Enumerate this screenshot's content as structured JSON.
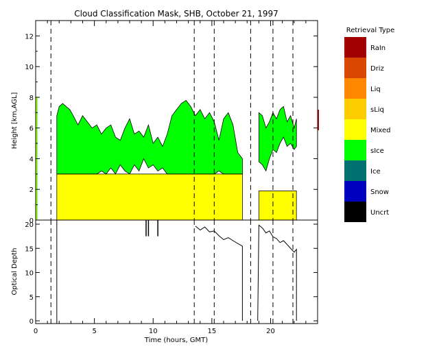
{
  "chart_data": [
    {
      "type": "area",
      "title": "Cloud Classification Mask, SHB, October 21, 1997",
      "ylabel": "Height [km,AGL]",
      "xlim": [
        0,
        24
      ],
      "ylim": [
        0,
        13
      ],
      "yticks": [
        0,
        2,
        4,
        6,
        8,
        10,
        12
      ],
      "grid": false,
      "dashed_times": [
        1.3,
        13.5,
        15.2,
        18.3,
        20.2,
        21.9
      ],
      "regions": [
        {
          "name": "Mixed",
          "color": "#ffff00",
          "x": [
            1.8,
            17.6
          ],
          "y": [
            0,
            3.0
          ]
        },
        {
          "name": "Mixed",
          "color": "#ffff00",
          "x": [
            19.0,
            22.2
          ],
          "y": [
            0,
            1.9
          ]
        }
      ],
      "sice_left": {
        "color": "#00ff00",
        "x": [
          1.8,
          2.0,
          2.3,
          2.6,
          2.9,
          3.2,
          3.6,
          4.0,
          4.4,
          4.8,
          5.2,
          5.6,
          6.0,
          6.4,
          6.8,
          7.2,
          7.6,
          8.0,
          8.4,
          8.8,
          9.2,
          9.6,
          10.0,
          10.4,
          10.8,
          11.2,
          11.6,
          12.0,
          12.4,
          12.8,
          13.2,
          13.6,
          14.0,
          14.4,
          14.8,
          15.2,
          15.6,
          16.0,
          16.4,
          16.8,
          17.2,
          17.6
        ],
        "top": [
          6.8,
          7.4,
          7.6,
          7.4,
          7.2,
          6.8,
          6.2,
          6.8,
          6.4,
          6.0,
          6.2,
          5.6,
          6.0,
          6.2,
          5.4,
          5.2,
          6.0,
          6.6,
          5.6,
          5.8,
          5.4,
          6.2,
          5.0,
          5.4,
          4.8,
          5.6,
          6.8,
          7.2,
          7.6,
          7.8,
          7.4,
          6.8,
          7.2,
          6.6,
          7.0,
          6.4,
          5.2,
          6.6,
          7.0,
          6.2,
          4.4,
          4.0
        ],
        "bottom": [
          3.0,
          3.0,
          3.0,
          3.0,
          3.0,
          3.0,
          3.0,
          3.0,
          3.0,
          3.0,
          3.0,
          3.2,
          3.0,
          3.4,
          3.0,
          3.6,
          3.2,
          3.0,
          3.6,
          3.2,
          4.0,
          3.4,
          3.6,
          3.2,
          3.4,
          3.0,
          3.0,
          3.0,
          3.0,
          3.0,
          3.0,
          3.0,
          3.0,
          3.0,
          3.0,
          3.0,
          3.2,
          3.0,
          3.0,
          3.0,
          3.0,
          3.0
        ]
      },
      "sice_right": {
        "color": "#00ff00",
        "x": [
          19.0,
          19.3,
          19.6,
          19.9,
          20.2,
          20.5,
          20.8,
          21.1,
          21.4,
          21.7,
          22.0,
          22.2
        ],
        "top": [
          7.0,
          6.8,
          6.0,
          6.4,
          7.0,
          6.6,
          7.2,
          7.4,
          6.4,
          6.8,
          6.0,
          6.6
        ],
        "bottom": [
          3.8,
          3.6,
          3.2,
          4.0,
          4.6,
          4.4,
          5.0,
          5.4,
          4.8,
          5.0,
          4.6,
          4.8
        ]
      }
    },
    {
      "type": "line",
      "ylabel": "Optical Depth",
      "xlabel": "Time (hours, GMT)",
      "xlim": [
        0,
        24
      ],
      "ylim": [
        0,
        20
      ],
      "xticks": [
        0,
        5,
        10,
        15,
        20
      ],
      "yticks": [
        0,
        5,
        10,
        15,
        20
      ],
      "series": [
        {
          "x": [
            13.6,
            14.0,
            14.4,
            14.8,
            15.2,
            15.6,
            16.0,
            16.4,
            16.8,
            17.2,
            17.5,
            17.6,
            17.6
          ],
          "y": [
            19.6,
            18.8,
            19.4,
            18.4,
            18.6,
            17.6,
            16.8,
            17.2,
            16.6,
            16.0,
            15.6,
            15.4,
            0
          ]
        },
        {
          "x": [
            18.9,
            19.0,
            19.3,
            19.6,
            19.9,
            20.2,
            20.5,
            20.8,
            21.1,
            21.4,
            21.7,
            22.0,
            22.2,
            22.2
          ],
          "y": [
            0,
            19.8,
            19.2,
            18.2,
            18.6,
            17.4,
            17.0,
            16.2,
            16.6,
            15.8,
            15.0,
            14.2,
            14.8,
            0
          ]
        }
      ],
      "spikes": [
        9.4,
        9.6,
        10.4
      ]
    }
  ],
  "legend": {
    "title": "Retrieval Type",
    "items": [
      {
        "label": "RaIn",
        "color": "#a00000"
      },
      {
        "label": "Driz",
        "color": "#d84800"
      },
      {
        "label": "Liq",
        "color": "#ff8800"
      },
      {
        "label": "sLiq",
        "color": "#ffcc00"
      },
      {
        "label": "Mixed",
        "color": "#ffff00"
      },
      {
        "label": "sIce",
        "color": "#00ff00"
      },
      {
        "label": "Ice",
        "color": "#007070"
      },
      {
        "label": "Snow",
        "color": "#0000c0"
      },
      {
        "label": "Uncrt",
        "color": "#000000"
      }
    ]
  }
}
